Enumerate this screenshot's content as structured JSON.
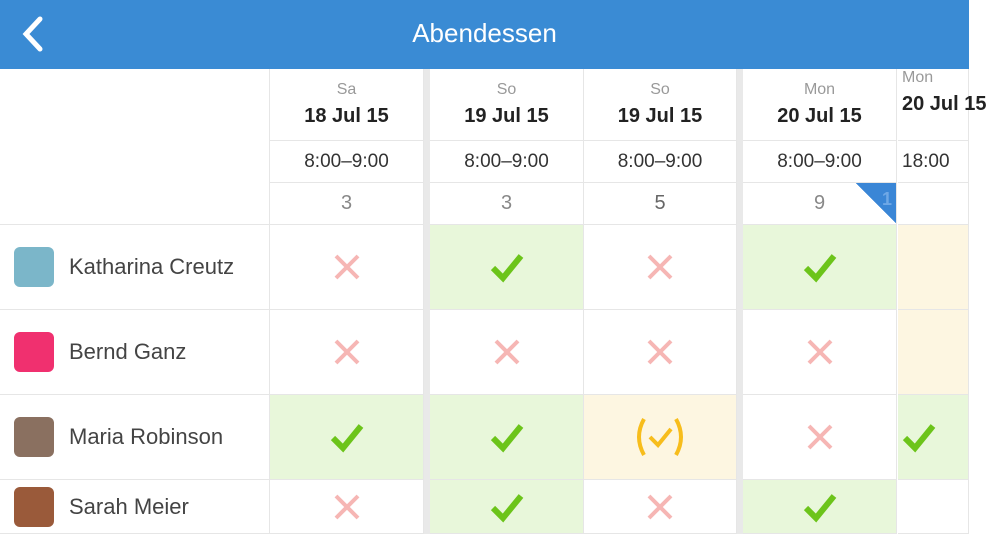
{
  "header": {
    "title": "Abendessen",
    "back_icon": "chevron-left-icon"
  },
  "columns": [
    {
      "weekday": "Sa",
      "date": "18 Jul 15",
      "time": "8:00–9:00",
      "count": "3"
    },
    {
      "weekday": "So",
      "date": "19 Jul 15",
      "time": "8:00–9:00",
      "count": "3"
    },
    {
      "weekday": "So",
      "date": "19 Jul 15",
      "time": "8:00–9:00",
      "count": "5"
    },
    {
      "weekday": "Mon",
      "date": "20 Jul 15",
      "time": "8:00–9:00",
      "count": "9",
      "badge": "1"
    },
    {
      "weekday": "Mon",
      "date": "20 Jul 15",
      "time": "18:00",
      "count": ""
    }
  ],
  "participants": [
    {
      "name": "Katharina Creutz",
      "avatar_color": "#7bb6c9",
      "answers": [
        "no",
        "yes",
        "no",
        "yes",
        "maybe-blank"
      ]
    },
    {
      "name": "Bernd Ganz",
      "avatar_color": "#f0306f",
      "answers": [
        "no",
        "no",
        "no",
        "no",
        "maybe-blank"
      ]
    },
    {
      "name": "Maria Robinson",
      "avatar_color": "#8a7060",
      "answers": [
        "yes",
        "yes",
        "maybe",
        "no",
        "yes"
      ]
    },
    {
      "name": "Sarah Meier",
      "avatar_color": "#9a5a3a",
      "answers": [
        "no",
        "yes",
        "no",
        "yes",
        "empty"
      ]
    }
  ],
  "colors": {
    "accent": "#3a8bd4",
    "yes": "#6cc41a",
    "no": "#f6b6b4",
    "maybe": "#f7bd1c"
  }
}
